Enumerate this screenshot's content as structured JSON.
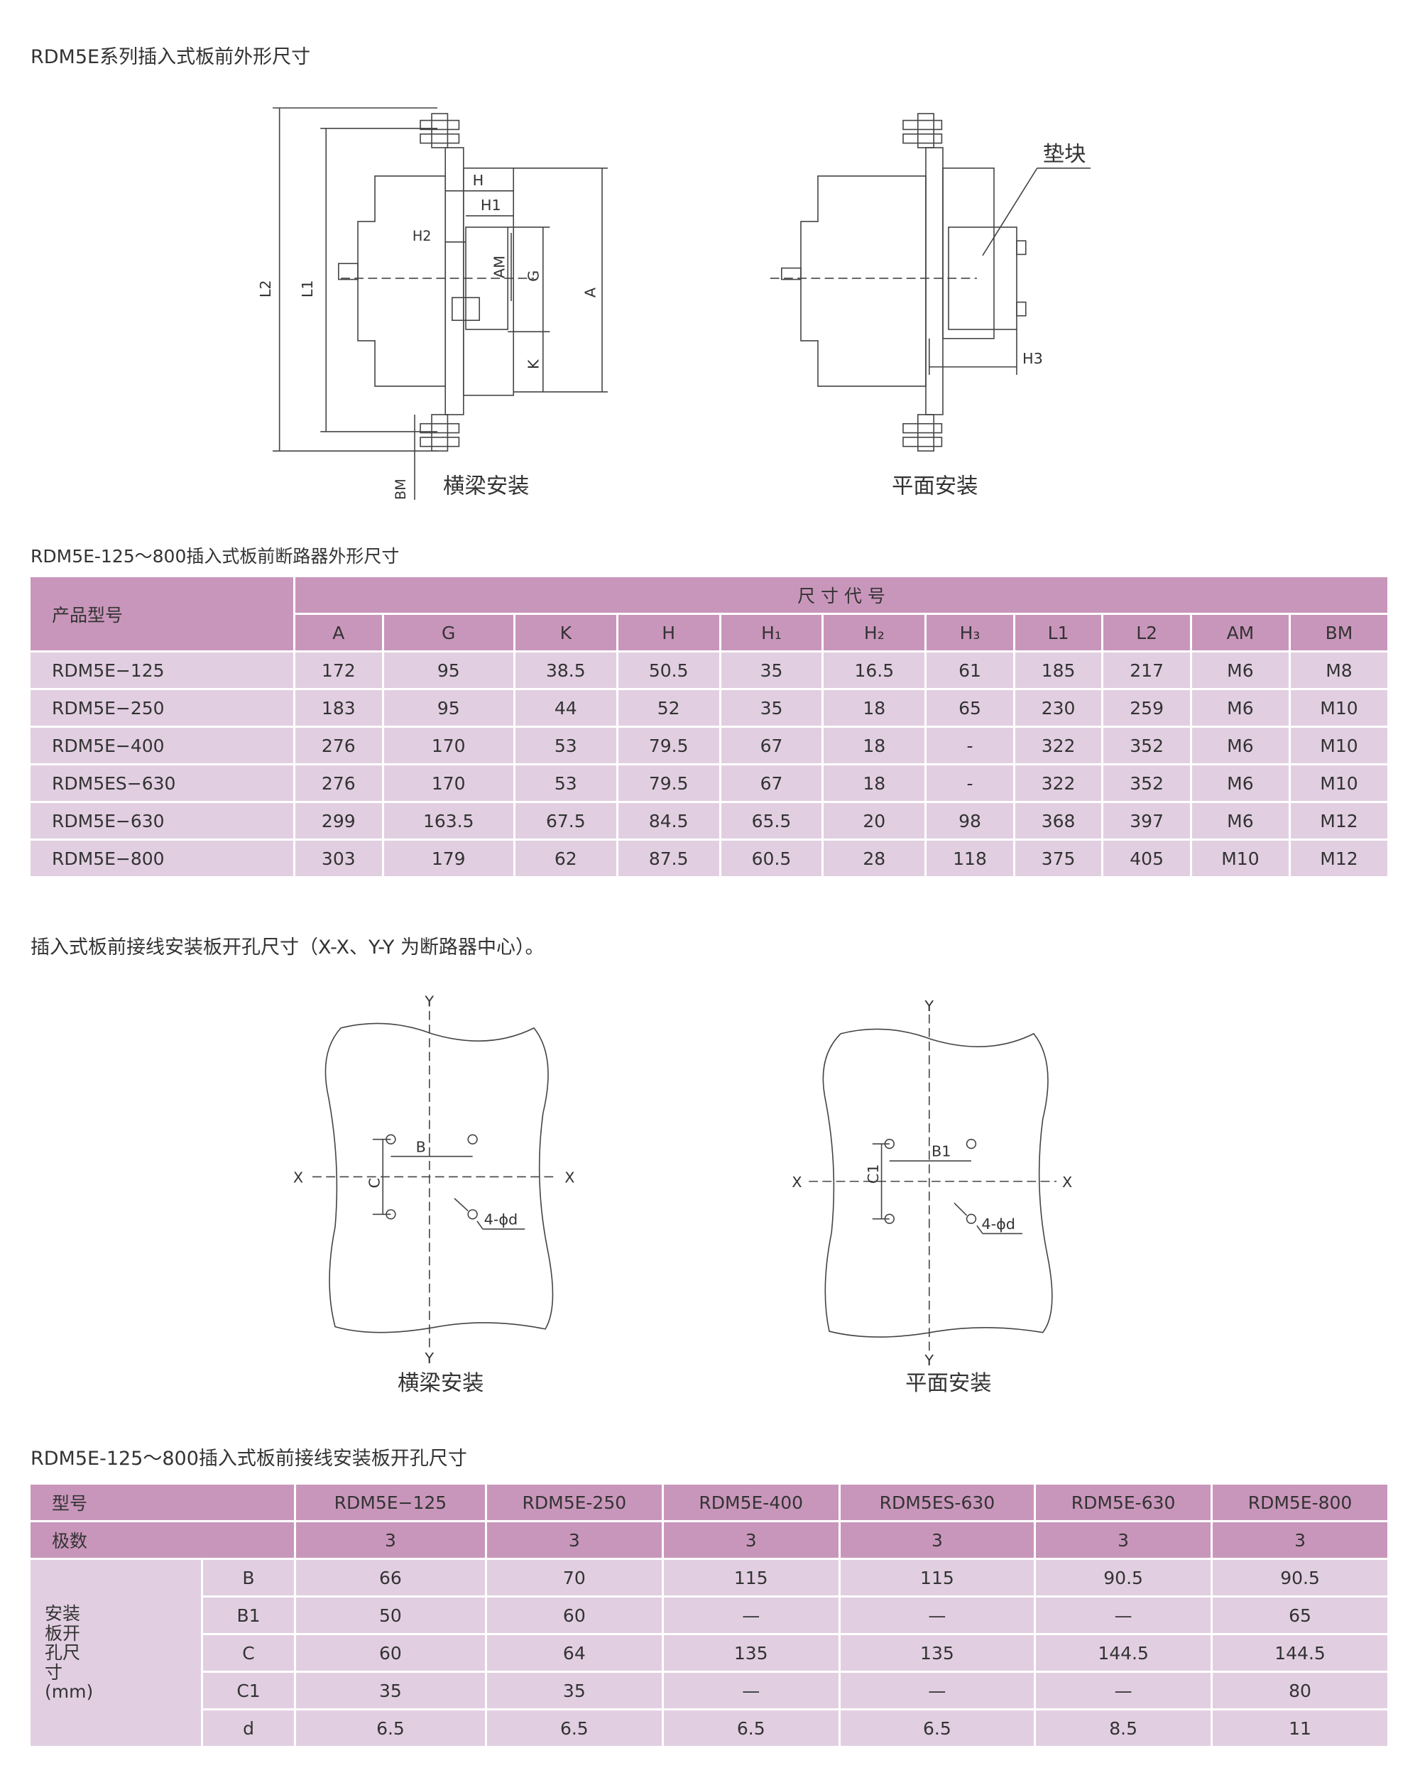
{
  "section1": {
    "title": "RDM5E系列插入式板前外形尺寸",
    "left_caption": "横梁安装",
    "right_caption": "平面安装",
    "spacer_label": "垫块",
    "dim_labels": {
      "H": "H",
      "H1": "H1",
      "H2": "H2",
      "AM": "AM",
      "G": "G",
      "A": "A",
      "K": "K",
      "L1": "L1",
      "L2": "L2",
      "BM": "BM",
      "H3": "H3"
    }
  },
  "table1": {
    "title": "RDM5E-125～800插入式板前断路器外形尺寸",
    "model_header": "产品型号",
    "group_header": "尺 寸 代 号",
    "columns": [
      "A",
      "G",
      "K",
      "H",
      "H₁",
      "H₂",
      "H₃",
      "L1",
      "L2",
      "AM",
      "BM"
    ],
    "rows": [
      {
        "model": "RDM5E−125",
        "values": [
          "172",
          "95",
          "38.5",
          "50.5",
          "35",
          "16.5",
          "61",
          "185",
          "217",
          "M6",
          "M8"
        ]
      },
      {
        "model": "RDM5E−250",
        "values": [
          "183",
          "95",
          "44",
          "52",
          "35",
          "18",
          "65",
          "230",
          "259",
          "M6",
          "M10"
        ]
      },
      {
        "model": "RDM5E−400",
        "values": [
          "276",
          "170",
          "53",
          "79.5",
          "67",
          "18",
          "-",
          "322",
          "352",
          "M6",
          "M10"
        ]
      },
      {
        "model": "RDM5ES−630",
        "values": [
          "276",
          "170",
          "53",
          "79.5",
          "67",
          "18",
          "-",
          "322",
          "352",
          "M6",
          "M10"
        ]
      },
      {
        "model": "RDM5E−630",
        "values": [
          "299",
          "163.5",
          "67.5",
          "84.5",
          "65.5",
          "20",
          "98",
          "368",
          "397",
          "M6",
          "M12"
        ]
      },
      {
        "model": "RDM5E−800",
        "values": [
          "303",
          "179",
          "62",
          "87.5",
          "60.5",
          "28",
          "118",
          "375",
          "405",
          "M10",
          "M12"
        ]
      }
    ]
  },
  "section2": {
    "title": "插入式板前接线安装板开孔尺寸（X-X、Y-Y 为断路器中心）。",
    "left_caption": "横梁安装",
    "right_caption": "平面安装",
    "labels": {
      "X": "X",
      "Y": "Y",
      "B": "B",
      "C": "C",
      "B1": "B1",
      "C1": "C1",
      "hole": "4-ϕd"
    }
  },
  "table2": {
    "title": "RDM5E-125～800插入式板前接线安装板开孔尺寸",
    "model_label": "型号",
    "poles_label": "极数",
    "group_label": "安装板开孔尺寸(mm)",
    "models": [
      "RDM5E−125",
      "RDM5E-250",
      "RDM5E-400",
      "RDM5ES-630",
      "RDM5E-630",
      "RDM5E-800"
    ],
    "poles": [
      "3",
      "3",
      "3",
      "3",
      "3",
      "3"
    ],
    "rows": [
      {
        "param": "B",
        "values": [
          "66",
          "70",
          "115",
          "115",
          "90.5",
          "90.5"
        ]
      },
      {
        "param": "B1",
        "values": [
          "50",
          "60",
          "—",
          "—",
          "—",
          "65"
        ]
      },
      {
        "param": "C",
        "values": [
          "60",
          "64",
          "135",
          "135",
          "144.5",
          "144.5"
        ]
      },
      {
        "param": "C1",
        "values": [
          "35",
          "35",
          "—",
          "—",
          "—",
          "80"
        ]
      },
      {
        "param": "d",
        "values": [
          "6.5",
          "6.5",
          "6.5",
          "6.5",
          "8.5",
          "11"
        ]
      }
    ]
  },
  "colors": {
    "header": "#c996bb",
    "body": "#e1cfe1",
    "text": "#333333"
  }
}
